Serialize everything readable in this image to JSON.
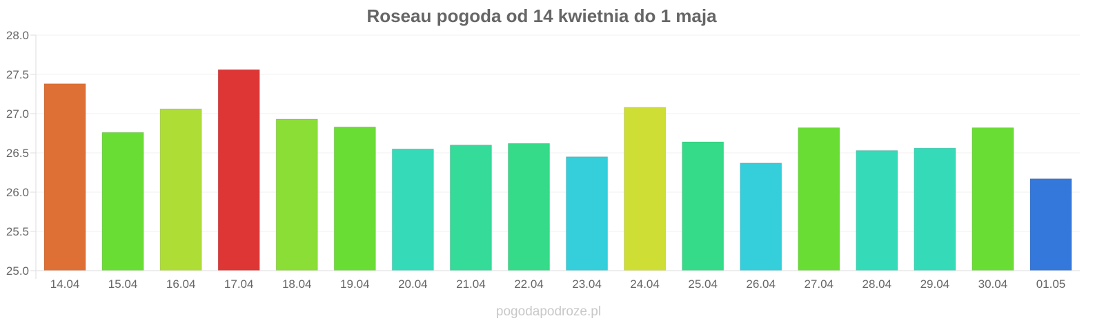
{
  "chart_data": {
    "type": "bar",
    "title": "Roseau pogoda od 14 kwietnia do 1 maja",
    "xlabel": "",
    "ylabel": "",
    "ylim": [
      25.0,
      28.0
    ],
    "yticks": [
      "25.0",
      "25.5",
      "26.0",
      "26.5",
      "27.0",
      "27.5",
      "28.0"
    ],
    "grid": true,
    "categories": [
      "14.04",
      "15.04",
      "16.04",
      "17.04",
      "18.04",
      "19.04",
      "20.04",
      "21.04",
      "22.04",
      "23.04",
      "24.04",
      "25.04",
      "26.04",
      "27.04",
      "28.04",
      "29.04",
      "30.04",
      "01.05"
    ],
    "values": [
      27.38,
      26.76,
      27.06,
      27.56,
      26.93,
      26.83,
      26.55,
      26.6,
      26.62,
      26.45,
      27.08,
      26.64,
      26.37,
      26.82,
      26.53,
      26.56,
      26.82,
      26.17
    ],
    "colors": [
      "#de7035",
      "#6add35",
      "#aede35",
      "#de3535",
      "#8ade35",
      "#6add35",
      "#35dbb8",
      "#35db98",
      "#35db88",
      "#35cedb",
      "#cfde35",
      "#35db88",
      "#35cedb",
      "#6add35",
      "#35dbb8",
      "#35dbb8",
      "#6add35",
      "#3578db"
    ]
  },
  "watermark": "pogodapodroze.pl"
}
